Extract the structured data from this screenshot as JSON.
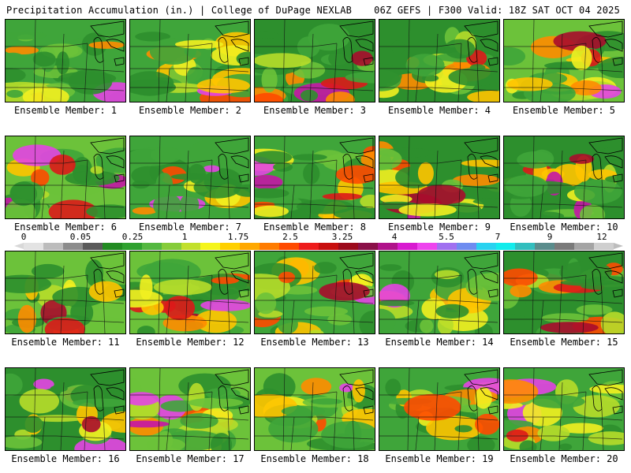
{
  "header": {
    "left": "Precipitation Accumulation (in.) | College of DuPage NEXLAB",
    "right": "06Z GEFS | F300 Valid: 18Z SAT OCT 04 2025"
  },
  "colorbar": {
    "labels": [
      "0",
      "0.05",
      "0.25",
      "1",
      "1.75",
      "2.5",
      "3.25",
      "4",
      "5.5",
      "7",
      "9",
      "12"
    ],
    "colors": [
      "#e3e3e3",
      "#bcbcbc",
      "#8c8c8c",
      "#5a5a5a",
      "#228b22",
      "#2fa12f",
      "#54b840",
      "#86cc3a",
      "#c2e02c",
      "#f5f51c",
      "#ffd000",
      "#ffa800",
      "#ff7c00",
      "#ff4a00",
      "#ee1c1c",
      "#c80f0f",
      "#9c0a1c",
      "#8a1048",
      "#b0128a",
      "#d81ad0",
      "#ee44ee",
      "#a070f0",
      "#6e8cf0",
      "#29d2f0",
      "#12ecec",
      "#32bebe",
      "#5a8c8c",
      "#7a7a7a",
      "#a4a4a4",
      "#cfcfcf"
    ]
  },
  "panels": [
    {
      "caption": "Ensemble Member: 1"
    },
    {
      "caption": "Ensemble Member: 2"
    },
    {
      "caption": "Ensemble Member: 3"
    },
    {
      "caption": "Ensemble Member: 4"
    },
    {
      "caption": "Ensemble Member: 5"
    },
    {
      "caption": "Ensemble Member: 6"
    },
    {
      "caption": "Ensemble Member: 7"
    },
    {
      "caption": "Ensemble Member: 8"
    },
    {
      "caption": "Ensemble Member: 9"
    },
    {
      "caption": "Ensemble Member: 10"
    },
    {
      "caption": "Ensemble Member: 11"
    },
    {
      "caption": "Ensemble Member: 12"
    },
    {
      "caption": "Ensemble Member: 13"
    },
    {
      "caption": "Ensemble Member: 14"
    },
    {
      "caption": "Ensemble Member: 15"
    },
    {
      "caption": "Ensemble Member: 16"
    },
    {
      "caption": "Ensemble Member: 17"
    },
    {
      "caption": "Ensemble Member: 18"
    },
    {
      "caption": "Ensemble Member: 19"
    },
    {
      "caption": "Ensemble Member: 20"
    }
  ]
}
